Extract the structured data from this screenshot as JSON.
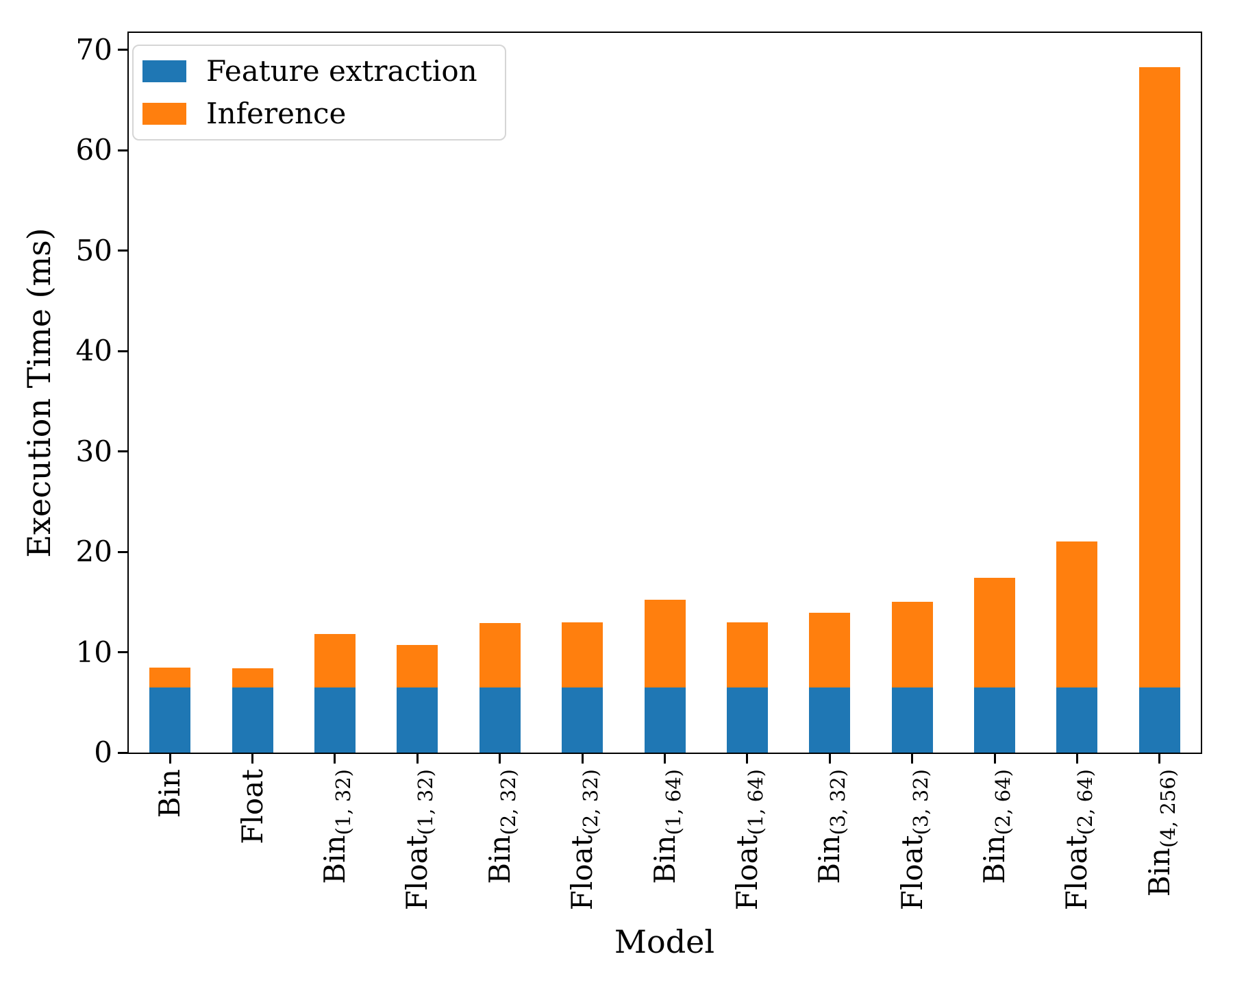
{
  "chart_data": {
    "type": "bar",
    "stacked": true,
    "xlabel": "Model",
    "ylabel": "Execution Time (ms)",
    "ylim": [
      0,
      71.7
    ],
    "yticks": [
      0,
      10,
      20,
      30,
      40,
      50,
      60,
      70
    ],
    "grid": false,
    "legend_position": "upper left",
    "categories": [
      {
        "main": "Bin",
        "sub": ""
      },
      {
        "main": "Float",
        "sub": ""
      },
      {
        "main": "Bin",
        "sub": "(1, 32)"
      },
      {
        "main": "Float",
        "sub": "(1, 32)"
      },
      {
        "main": "Bin",
        "sub": "(2, 32)"
      },
      {
        "main": "Float",
        "sub": "(2, 32)"
      },
      {
        "main": "Bin",
        "sub": "(1, 64)"
      },
      {
        "main": "Float",
        "sub": "(1, 64)"
      },
      {
        "main": "Bin",
        "sub": "(3, 32)"
      },
      {
        "main": "Float",
        "sub": "(3, 32)"
      },
      {
        "main": "Bin",
        "sub": "(2, 64)"
      },
      {
        "main": "Float",
        "sub": "(2, 64)"
      },
      {
        "main": "Bin",
        "sub": "(4, 256)"
      }
    ],
    "series": [
      {
        "name": "Feature extraction",
        "color": "#1f77b4",
        "values": [
          6.5,
          6.5,
          6.5,
          6.5,
          6.5,
          6.5,
          6.5,
          6.5,
          6.5,
          6.5,
          6.5,
          6.5,
          6.5
        ]
      },
      {
        "name": "Inference",
        "color": "#ff7f0e",
        "values": [
          2.0,
          1.9,
          5.3,
          4.2,
          6.4,
          6.5,
          8.7,
          6.5,
          7.4,
          8.5,
          10.9,
          14.5,
          61.8
        ]
      }
    ]
  }
}
